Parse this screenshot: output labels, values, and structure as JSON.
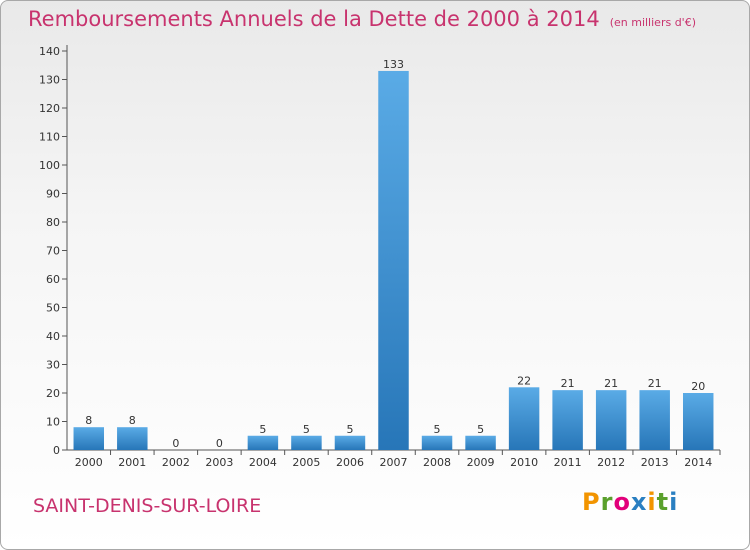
{
  "title": "Remboursements Annuels de la Dette de 2000 à 2014",
  "unit": "(en milliers d'€)",
  "commune": "SAINT-DENIS-SUR-LOIRE",
  "logo": {
    "text": "Proxiti",
    "letters": [
      "P",
      "r",
      "o",
      "x",
      "i",
      "t",
      "i"
    ],
    "colors": [
      "#f29400",
      "#5aa02c",
      "#e2007a",
      "#2a7fc1",
      "#f29400",
      "#5aa02c",
      "#2a7fc1"
    ]
  },
  "colors": {
    "title": "#c8336e",
    "bar_light": "#5aabe6",
    "bar_dark": "#2776b8",
    "axis": "#555555"
  },
  "chart_data": {
    "type": "bar",
    "categories": [
      "2000",
      "2001",
      "2002",
      "2003",
      "2004",
      "2005",
      "2006",
      "2007",
      "2008",
      "2009",
      "2010",
      "2011",
      "2012",
      "2013",
      "2014"
    ],
    "values": [
      8,
      8,
      0,
      0,
      5,
      5,
      5,
      133,
      5,
      5,
      22,
      21,
      21,
      21,
      20
    ],
    "value_labels": [
      "8",
      "8",
      "0",
      "0",
      "5",
      "5",
      "5",
      "133",
      "5",
      "5",
      "22",
      "21",
      "21",
      "21",
      "20"
    ],
    "title": "Remboursements Annuels de la Dette de 2000 à 2014",
    "xlabel": "",
    "ylabel": "",
    "ylim": [
      0,
      140
    ],
    "yticks": [
      0,
      10,
      20,
      30,
      40,
      50,
      60,
      70,
      80,
      90,
      100,
      110,
      120,
      130,
      140
    ],
    "ytick_labels": [
      "0",
      "10",
      "20",
      "30",
      "40",
      "50",
      "60",
      "70",
      "80",
      "90",
      "100",
      "110",
      "120",
      "130",
      "140"
    ],
    "grid": false,
    "legend": "none"
  }
}
